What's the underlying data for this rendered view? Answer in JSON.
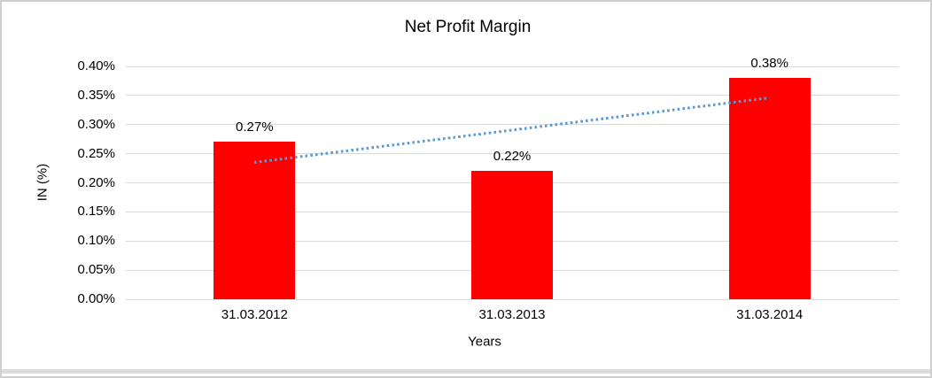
{
  "chart_data": {
    "type": "bar",
    "title": "Net Profit Margin",
    "xlabel": "Years",
    "ylabel": "IN (%)",
    "categories": [
      "31.03.2012",
      "31.03.2013",
      "31.03.2014"
    ],
    "values": [
      0.27,
      0.22,
      0.38
    ],
    "data_labels": [
      "0.27%",
      "0.22%",
      "0.38%"
    ],
    "ylim": [
      0,
      0.4
    ],
    "ytick_step": 0.05,
    "ytick_labels": [
      "0.00%",
      "0.05%",
      "0.10%",
      "0.15%",
      "0.20%",
      "0.25%",
      "0.30%",
      "0.35%",
      "0.40%"
    ],
    "grid": true,
    "legend": "none",
    "bar_color": "#FF0000",
    "gridline_color": "#d9d9d9",
    "text_color": "#000000",
    "trendline": {
      "kind": "linear",
      "style": "dotted",
      "color": "#5B9BD5",
      "start_value": 0.2345,
      "end_value": 0.3455
    }
  }
}
